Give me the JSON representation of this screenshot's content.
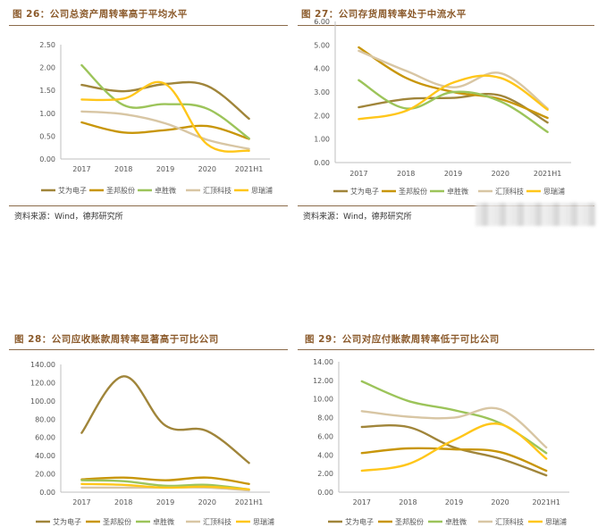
{
  "palette": [
    "#a0853a",
    "#c8960a",
    "#9cc45a",
    "#d8c6a4",
    "#ffc61a"
  ],
  "chart_data": [
    {
      "type": "line",
      "title": "图 26：公司总资产周转率高于平均水平",
      "source": "资料来源：Wind，德邦研究所",
      "categories": [
        "2017",
        "2018",
        "2019",
        "2020",
        "2021H1"
      ],
      "ylim": [
        0,
        2.5
      ],
      "yticks": [
        "0.00",
        "0.50",
        "1.00",
        "1.50",
        "2.00",
        "2.50"
      ],
      "series": [
        {
          "name": "艾为电子",
          "values": [
            1.62,
            1.48,
            1.64,
            1.6,
            0.88
          ]
        },
        {
          "name": "圣邦股份",
          "values": [
            0.8,
            0.58,
            0.63,
            0.72,
            0.44
          ]
        },
        {
          "name": "卓胜微",
          "values": [
            2.05,
            1.18,
            1.2,
            1.1,
            0.45
          ]
        },
        {
          "name": "汇顶科技",
          "values": [
            1.04,
            0.98,
            0.78,
            0.42,
            0.22
          ]
        },
        {
          "name": "思瑞浦",
          "values": [
            1.3,
            1.32,
            1.64,
            0.32,
            0.18
          ]
        }
      ]
    },
    {
      "type": "line",
      "title": "图 27：公司存货周转率处于中流水平",
      "source": "资料来源：Wind，德邦研究所",
      "categories": [
        "2017",
        "2018",
        "2019",
        "2020",
        "2021H1"
      ],
      "ylim": [
        0,
        6
      ],
      "yticks": [
        "0.00",
        "1.00",
        "2.00",
        "3.00",
        "4.00",
        "5.00",
        "6.00"
      ],
      "series": [
        {
          "name": "艾为电子",
          "values": [
            2.35,
            2.7,
            2.75,
            2.85,
            1.7
          ]
        },
        {
          "name": "圣邦股份",
          "values": [
            4.9,
            3.6,
            3.0,
            2.7,
            1.9
          ]
        },
        {
          "name": "卓胜微",
          "values": [
            3.5,
            2.3,
            3.0,
            2.6,
            1.3
          ]
        },
        {
          "name": "汇顶科技",
          "values": [
            4.75,
            3.9,
            3.2,
            3.8,
            2.3
          ]
        },
        {
          "name": "思瑞浦",
          "values": [
            1.85,
            2.2,
            3.4,
            3.6,
            2.25
          ]
        }
      ]
    },
    {
      "type": "line",
      "title": "图 28：公司应收账款周转率显著高于可比公司",
      "categories": [
        "2017",
        "2018",
        "2019",
        "2020",
        "2021H1"
      ],
      "ylim": [
        0,
        140
      ],
      "yticks": [
        "0.00",
        "20.00",
        "40.00",
        "60.00",
        "80.00",
        "100.00",
        "120.00",
        "140.00"
      ],
      "series": [
        {
          "name": "艾为电子",
          "values": [
            65,
            127,
            73,
            67,
            32
          ]
        },
        {
          "name": "圣邦股份",
          "values": [
            14,
            16,
            13,
            16,
            9
          ]
        },
        {
          "name": "卓胜微",
          "values": [
            13,
            12,
            7,
            8,
            3
          ]
        },
        {
          "name": "汇顶科技",
          "values": [
            5,
            5,
            5,
            5,
            2
          ]
        },
        {
          "name": "思瑞浦",
          "values": [
            9,
            8,
            5,
            6,
            3
          ]
        }
      ]
    },
    {
      "type": "line",
      "title": "图 29：公司对应付账款周转率低于可比公司",
      "categories": [
        "2017",
        "2018",
        "2019",
        "2020",
        "2021H1"
      ],
      "ylim": [
        0,
        14
      ],
      "yticks": [
        "0.00",
        "2.00",
        "4.00",
        "6.00",
        "8.00",
        "10.00",
        "12.00",
        "14.00"
      ],
      "series": [
        {
          "name": "艾为电子",
          "values": [
            7.0,
            7.0,
            4.8,
            3.6,
            1.8
          ]
        },
        {
          "name": "圣邦股份",
          "values": [
            4.2,
            4.7,
            4.6,
            4.3,
            2.3
          ]
        },
        {
          "name": "卓胜微",
          "values": [
            11.9,
            9.8,
            8.8,
            7.4,
            4.2
          ]
        },
        {
          "name": "汇顶科技",
          "values": [
            8.7,
            8.1,
            8.0,
            8.9,
            4.8
          ]
        },
        {
          "name": "思瑞浦",
          "values": [
            2.3,
            3.0,
            5.6,
            7.3,
            3.6
          ]
        }
      ]
    }
  ]
}
